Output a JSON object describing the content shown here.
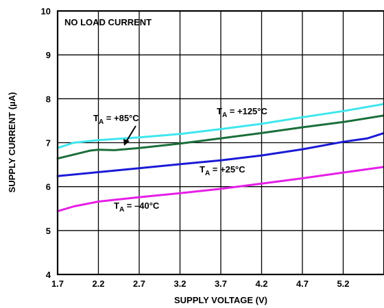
{
  "chart_data": {
    "type": "line",
    "xlabel": "SUPPLY VOLTAGE (V)",
    "ylabel": "SUPPLY CURRENT (µA)",
    "xlim": [
      1.7,
      5.7
    ],
    "ylim": [
      4,
      10
    ],
    "x_ticks": [
      "1.7",
      "2.2",
      "2.7",
      "3.2",
      "3.7",
      "4.2",
      "4.7",
      "5.2"
    ],
    "y_ticks": [
      "4",
      "5",
      "6",
      "7",
      "8",
      "9",
      "10"
    ],
    "grid": true,
    "annotation": "NO LOAD CURRENT",
    "series": [
      {
        "label_main": "T",
        "label_sub": "A",
        "label_rest": " = +125°C",
        "color": "#3ee6ee",
        "points": [
          [
            1.7,
            6.88
          ],
          [
            1.9,
            7.0
          ],
          [
            2.2,
            7.06
          ],
          [
            2.7,
            7.12
          ],
          [
            3.2,
            7.2
          ],
          [
            3.7,
            7.31
          ],
          [
            4.2,
            7.43
          ],
          [
            4.7,
            7.58
          ],
          [
            5.2,
            7.72
          ],
          [
            5.7,
            7.88
          ]
        ]
      },
      {
        "label_main": "T",
        "label_sub": "A",
        "label_rest": " = +85°C",
        "color": "#1a6e3a",
        "points": [
          [
            1.7,
            6.64
          ],
          [
            1.9,
            6.73
          ],
          [
            2.1,
            6.82
          ],
          [
            2.2,
            6.84
          ],
          [
            2.4,
            6.83
          ],
          [
            2.7,
            6.88
          ],
          [
            3.2,
            6.98
          ],
          [
            3.7,
            7.1
          ],
          [
            4.2,
            7.22
          ],
          [
            4.7,
            7.35
          ],
          [
            5.2,
            7.47
          ],
          [
            5.7,
            7.62
          ]
        ]
      },
      {
        "label_main": "T",
        "label_sub": "A",
        "label_rest": " = +25°C",
        "color": "#1a1ad6",
        "points": [
          [
            1.7,
            6.24
          ],
          [
            2.2,
            6.33
          ],
          [
            2.7,
            6.42
          ],
          [
            3.2,
            6.51
          ],
          [
            3.7,
            6.6
          ],
          [
            4.2,
            6.71
          ],
          [
            4.7,
            6.85
          ],
          [
            5.2,
            7.02
          ],
          [
            5.5,
            7.1
          ],
          [
            5.7,
            7.22
          ]
        ]
      },
      {
        "label_main": "T",
        "label_sub": "A",
        "label_rest": " = –40°C",
        "color": "#e61ee6",
        "points": [
          [
            1.7,
            5.44
          ],
          [
            1.9,
            5.55
          ],
          [
            2.2,
            5.66
          ],
          [
            2.7,
            5.76
          ],
          [
            3.2,
            5.85
          ],
          [
            3.7,
            5.95
          ],
          [
            4.2,
            6.07
          ],
          [
            4.7,
            6.19
          ],
          [
            5.2,
            6.32
          ],
          [
            5.7,
            6.45
          ]
        ]
      }
    ]
  }
}
